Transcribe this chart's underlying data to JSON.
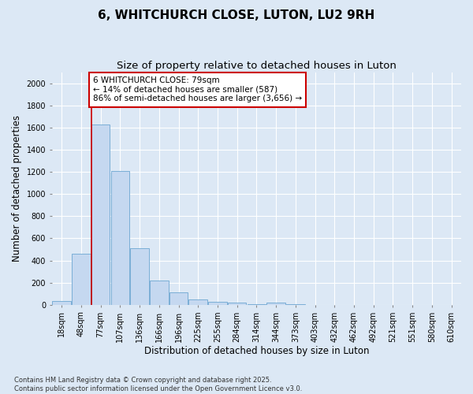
{
  "title1": "6, WHITCHURCH CLOSE, LUTON, LU2 9RH",
  "title2": "Size of property relative to detached houses in Luton",
  "xlabel": "Distribution of detached houses by size in Luton",
  "ylabel": "Number of detached properties",
  "categories": [
    "18sqm",
    "48sqm",
    "77sqm",
    "107sqm",
    "136sqm",
    "166sqm",
    "196sqm",
    "225sqm",
    "255sqm",
    "284sqm",
    "314sqm",
    "344sqm",
    "373sqm",
    "403sqm",
    "432sqm",
    "462sqm",
    "492sqm",
    "521sqm",
    "551sqm",
    "580sqm",
    "610sqm"
  ],
  "values": [
    35,
    460,
    1630,
    1210,
    510,
    220,
    115,
    45,
    25,
    20,
    5,
    20,
    5,
    2,
    1,
    1,
    1,
    0,
    0,
    0,
    0
  ],
  "bar_color": "#c5d8f0",
  "bar_edge_color": "#7aaed6",
  "vline_color": "#cc0000",
  "annotation_text": "6 WHITCHURCH CLOSE: 79sqm\n← 14% of detached houses are smaller (587)\n86% of semi-detached houses are larger (3,656) →",
  "annotation_box_color": "#ffffff",
  "annotation_box_edge": "#cc0000",
  "ylim": [
    0,
    2100
  ],
  "yticks": [
    0,
    200,
    400,
    600,
    800,
    1000,
    1200,
    1400,
    1600,
    1800,
    2000
  ],
  "bg_color": "#dce8f5",
  "plot_bg_color": "#dce8f5",
  "footer": "Contains HM Land Registry data © Crown copyright and database right 2025.\nContains public sector information licensed under the Open Government Licence v3.0.",
  "title1_fontsize": 11,
  "title2_fontsize": 9.5,
  "tick_fontsize": 7,
  "label_fontsize": 8.5,
  "annot_fontsize": 7.5,
  "footer_fontsize": 6
}
